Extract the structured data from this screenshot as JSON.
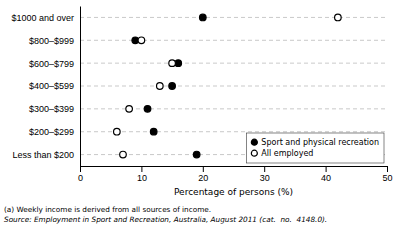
{
  "chart_data": {
    "type": "dot",
    "orientation": "horizontal",
    "categories": [
      "Less than $200",
      "$200–$299",
      "$300–$399",
      "$400–$599",
      "$600–$799",
      "$800–$999",
      "$1000 and over"
    ],
    "series": [
      {
        "name": "Sport and physical recreation",
        "color": "#000000",
        "marker": "filled-circle",
        "values": [
          19,
          12,
          11,
          15,
          16,
          9,
          20
        ]
      },
      {
        "name": "All employed",
        "color": "#000000",
        "marker": "open-circle",
        "values": [
          7,
          6,
          8,
          13,
          15,
          10,
          42
        ]
      }
    ],
    "xlabel": "Percentage of persons (%)",
    "xlim": [
      0,
      50
    ],
    "xticks": [
      0,
      10,
      20,
      30,
      40,
      50
    ],
    "grid": true,
    "line_style": "dashed",
    "legend": "lower right",
    "annotations": [
      "(a) Weekly income is derived from all sources of income.",
      "Source: Employment in Sport and Recreation, Australia, August 2011 (cat.  no.  4148.0)."
    ]
  }
}
